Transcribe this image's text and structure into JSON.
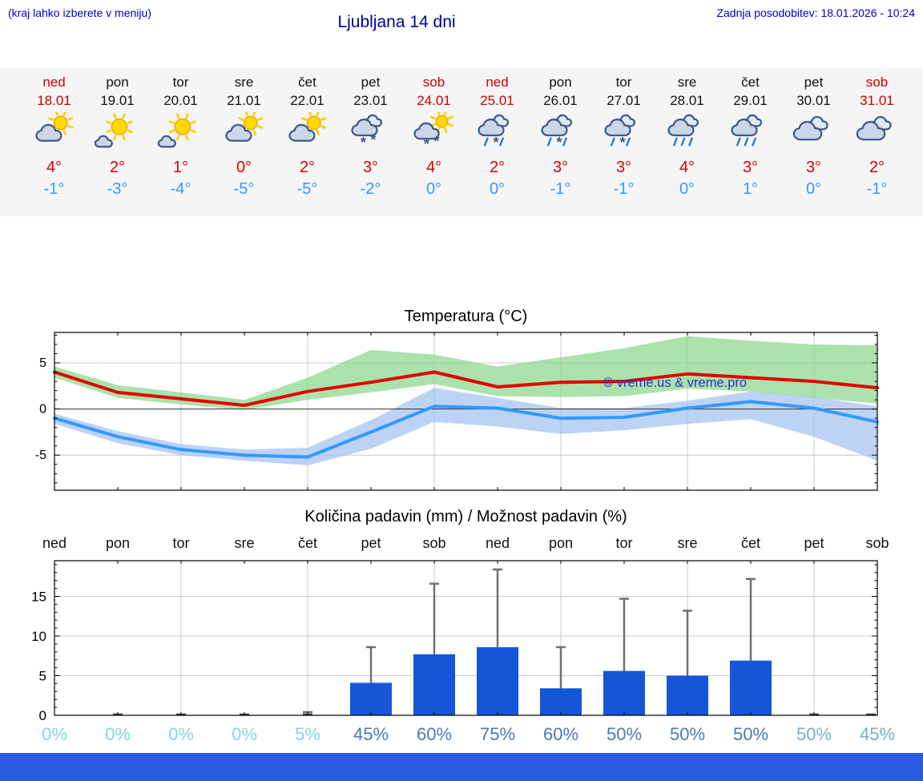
{
  "header": {
    "hint": "(kraj lahko izberete v meniju)",
    "title": "Ljubljana 14 dni",
    "updated": "Zadnja posodobitev: 18.01.2026 - 10:24"
  },
  "colors": {
    "accent_blue": "#0000cc",
    "title_blue": "#000099",
    "weekend_red": "#cc0000",
    "high_temp_red": "#dd0000",
    "low_temp_blue": "#3399ff",
    "strip_bg": "#f5f5f5",
    "footer_bar_blue": "#2c5ce0"
  },
  "forecast_days": [
    {
      "name": "ned",
      "date": "18.01",
      "weekend": true,
      "icon": "partly-sunny",
      "high": "4°",
      "low": "-1°"
    },
    {
      "name": "pon",
      "date": "19.01",
      "weekend": false,
      "icon": "mostly-sunny",
      "high": "2°",
      "low": "-3°"
    },
    {
      "name": "tor",
      "date": "20.01",
      "weekend": false,
      "icon": "mostly-sunny",
      "high": "1°",
      "low": "-4°"
    },
    {
      "name": "sre",
      "date": "21.01",
      "weekend": false,
      "icon": "partly-sunny",
      "high": "0°",
      "low": "-5°"
    },
    {
      "name": "čet",
      "date": "22.01",
      "weekend": false,
      "icon": "partly-sunny",
      "high": "2°",
      "low": "-5°"
    },
    {
      "name": "pet",
      "date": "23.01",
      "weekend": false,
      "icon": "snow",
      "high": "3°",
      "low": "-2°"
    },
    {
      "name": "sob",
      "date": "24.01",
      "weekend": true,
      "icon": "sun-snow",
      "high": "4°",
      "low": "0°"
    },
    {
      "name": "ned",
      "date": "25.01",
      "weekend": true,
      "icon": "sleet",
      "high": "2°",
      "low": "0°"
    },
    {
      "name": "pon",
      "date": "26.01",
      "weekend": false,
      "icon": "sleet",
      "high": "3°",
      "low": "-1°"
    },
    {
      "name": "tor",
      "date": "27.01",
      "weekend": false,
      "icon": "sleet",
      "high": "3°",
      "low": "-1°"
    },
    {
      "name": "sre",
      "date": "28.01",
      "weekend": false,
      "icon": "rain",
      "high": "4°",
      "low": "0°"
    },
    {
      "name": "čet",
      "date": "29.01",
      "weekend": false,
      "icon": "rain",
      "high": "3°",
      "low": "1°"
    },
    {
      "name": "pet",
      "date": "30.01",
      "weekend": false,
      "icon": "cloudy",
      "high": "3°",
      "low": "0°"
    },
    {
      "name": "sob",
      "date": "31.01",
      "weekend": true,
      "icon": "cloudy",
      "high": "2°",
      "low": "-1°"
    }
  ],
  "chart_data": [
    {
      "type": "line",
      "title": "Temperatura (°C)",
      "x": [
        "18.01",
        "19.01",
        "20.01",
        "21.01",
        "22.01",
        "23.01",
        "24.01",
        "25.01",
        "26.01",
        "27.01",
        "28.01",
        "29.01",
        "30.01",
        "31.01"
      ],
      "ylim": [
        -8.8,
        8.3
      ],
      "yticks": [
        -5,
        0,
        5
      ],
      "grid": true,
      "legend": "none",
      "watermark": "© vreme.us & vreme.pro",
      "series": [
        {
          "name": "max temperatura",
          "color": "#e00000",
          "values": [
            4,
            1.8,
            1.1,
            0.4,
            1.9,
            2.9,
            4,
            2.4,
            2.9,
            3,
            3.8,
            3.4,
            3,
            2.3
          ],
          "band_upper": [
            4.6,
            2.6,
            1.8,
            1.0,
            3.4,
            6.4,
            5.9,
            4.6,
            5.6,
            6.6,
            7.9,
            7.4,
            7.0,
            6.9
          ],
          "band_lower": [
            3.4,
            1.2,
            0.5,
            -0.1,
            1.0,
            1.8,
            2.7,
            1.4,
            1.3,
            1.4,
            2.2,
            1.9,
            1.2,
            0.6
          ],
          "band_color": "#8fd88f"
        },
        {
          "name": "min temperatura",
          "color": "#3399ff",
          "values": [
            -1,
            -3,
            -4.4,
            -5,
            -5.2,
            -2.5,
            0.3,
            0.1,
            -1,
            -0.9,
            0.1,
            0.8,
            0.1,
            -1.4
          ],
          "band_upper": [
            -0.5,
            -2.4,
            -3.8,
            -4.4,
            -4.2,
            -1.2,
            2.3,
            1.2,
            0.1,
            0.1,
            0.9,
            1.9,
            1.3,
            0.3
          ],
          "band_lower": [
            -1.6,
            -3.7,
            -5.0,
            -5.6,
            -6.1,
            -4.3,
            -1.4,
            -1.9,
            -2.7,
            -2.3,
            -1.6,
            -1.1,
            -3.0,
            -5.6
          ],
          "band_color": "#a6c4f0"
        }
      ]
    },
    {
      "type": "bar",
      "title": "Količina padavin (mm) / Možnost padavin (%)",
      "categories": [
        "ned",
        "pon",
        "tor",
        "sre",
        "čet",
        "pet",
        "sob",
        "ned",
        "pon",
        "tor",
        "sre",
        "čet",
        "pet",
        "sob"
      ],
      "values": [
        0,
        0.1,
        0.1,
        0.1,
        0.12,
        4.1,
        7.7,
        8.6,
        3.4,
        5.6,
        5.0,
        6.9,
        0.1,
        0.1
      ],
      "whiskers": [
        0,
        0,
        0,
        0,
        0.4,
        8.6,
        16.6,
        18.4,
        8.6,
        14.7,
        13.2,
        17.2,
        0,
        0
      ],
      "percent_labels": [
        "0%",
        "0%",
        "0%",
        "0%",
        "5%",
        "45%",
        "60%",
        "75%",
        "60%",
        "50%",
        "50%",
        "50%",
        "50%",
        "45%"
      ],
      "percent_colors": [
        "#85d5e5",
        "#85d5e5",
        "#85d5e5",
        "#85d5e5",
        "#85d5e5",
        "#4a7ab6",
        "#4a7ab6",
        "#4a7ab6",
        "#4a7ab6",
        "#4a7ab6",
        "#4a7ab6",
        "#4a7ab6",
        "#77aed2",
        "#77aed2"
      ],
      "ylim": [
        0,
        19.5
      ],
      "yticks": [
        0,
        5,
        10,
        15
      ],
      "bar_color": "#1556d8",
      "whisker_color": "#707070",
      "grid": true
    }
  ]
}
